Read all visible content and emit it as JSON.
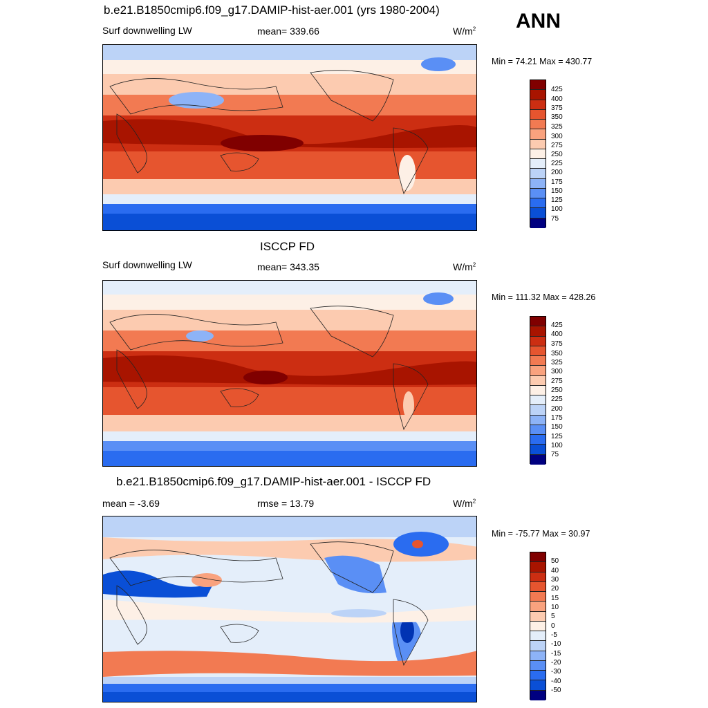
{
  "season": "ANN",
  "palettes": {
    "abs": [
      "#000080",
      "#0033b3",
      "#0a4fd6",
      "#2a6cf0",
      "#5a8ff5",
      "#8db3f7",
      "#bcd3f7",
      "#e4eefa",
      "#fdf0e6",
      "#fccbb0",
      "#f9a27e",
      "#f27a52",
      "#e6552f",
      "#cc2e12",
      "#a81400",
      "#800000"
    ],
    "diff": [
      "#000080",
      "#0033b3",
      "#0a4fd6",
      "#2a6cf0",
      "#5a8ff5",
      "#8db3f7",
      "#bcd3f7",
      "#e4eefa",
      "#fdf0e6",
      "#fccbb0",
      "#f9a27e",
      "#f27a52",
      "#e6552f",
      "#cc2e12",
      "#a81400",
      "#800000"
    ]
  },
  "panels": [
    {
      "title": "b.e21.B1850cmip6.f09_g17.DAMIP-hist-aer.001 (yrs 1980-2004)",
      "left_label": "Surf downwelling LW",
      "center_label": "mean= 339.66",
      "units": "W/m",
      "units_sup": "2",
      "minmax": "Min =  74.21 Max = 430.77",
      "levels": [
        "425",
        "400",
        "375",
        "350",
        "325",
        "300",
        "275",
        "250",
        "225",
        "200",
        "175",
        "150",
        "125",
        "100",
        "75"
      ],
      "kind": "abs"
    },
    {
      "title": "ISCCP FD",
      "left_label": "Surf downwelling LW",
      "center_label": "mean= 343.35",
      "units": "W/m",
      "units_sup": "2",
      "minmax": "Min = 111.32 Max = 428.26",
      "levels": [
        "425",
        "400",
        "375",
        "350",
        "325",
        "300",
        "275",
        "250",
        "225",
        "200",
        "175",
        "150",
        "125",
        "100",
        "75"
      ],
      "kind": "abs"
    },
    {
      "title": "b.e21.B1850cmip6.f09_g17.DAMIP-hist-aer.001 - ISCCP FD",
      "left_label": "mean =  -3.69",
      "center_label": "rmse =  13.79",
      "units": "W/m",
      "units_sup": "2",
      "minmax": "Min = -75.77 Max =  30.97",
      "levels": [
        "50",
        "40",
        "30",
        "20",
        "15",
        "10",
        "5",
        "0",
        "-5",
        "-10",
        "-15",
        "-20",
        "-30",
        "-40",
        "-50"
      ],
      "kind": "diff"
    }
  ]
}
